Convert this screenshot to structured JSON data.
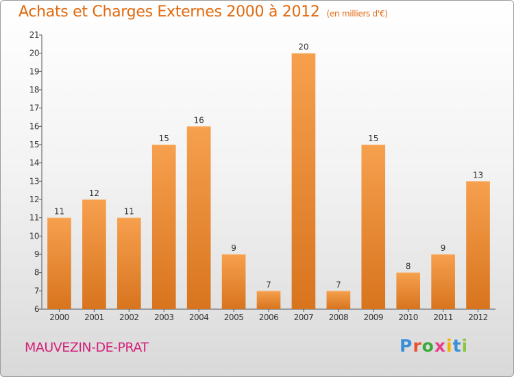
{
  "header": {
    "title": "Achats et Charges Externes 2000 à 2012",
    "unit": "(en milliers d'€)"
  },
  "footer": {
    "commune": "MAUVEZIN-DE-PRAT",
    "logo_letters": [
      "P",
      "r",
      "o",
      "x",
      "i",
      "t",
      "i"
    ],
    "logo_colors": [
      "#3b8fd9",
      "#e9552a",
      "#3aa935",
      "#e83e8c",
      "#f2b200",
      "#3b8fd9",
      "#8cc63f"
    ]
  },
  "chart_data": {
    "type": "bar",
    "categories": [
      "2000",
      "2001",
      "2002",
      "2003",
      "2004",
      "2005",
      "2006",
      "2007",
      "2008",
      "2009",
      "2010",
      "2011",
      "2012"
    ],
    "values": [
      11,
      12,
      11,
      15,
      16,
      9,
      7,
      20,
      7,
      15,
      8,
      9,
      13
    ],
    "title": "Achats et Charges Externes 2000 à 2012",
    "ylim": [
      6,
      21
    ],
    "yticks": [
      6,
      7,
      8,
      9,
      10,
      11,
      12,
      13,
      14,
      15,
      16,
      17,
      18,
      19,
      20,
      21
    ],
    "grid": false,
    "bar_color": "#f08a30"
  }
}
